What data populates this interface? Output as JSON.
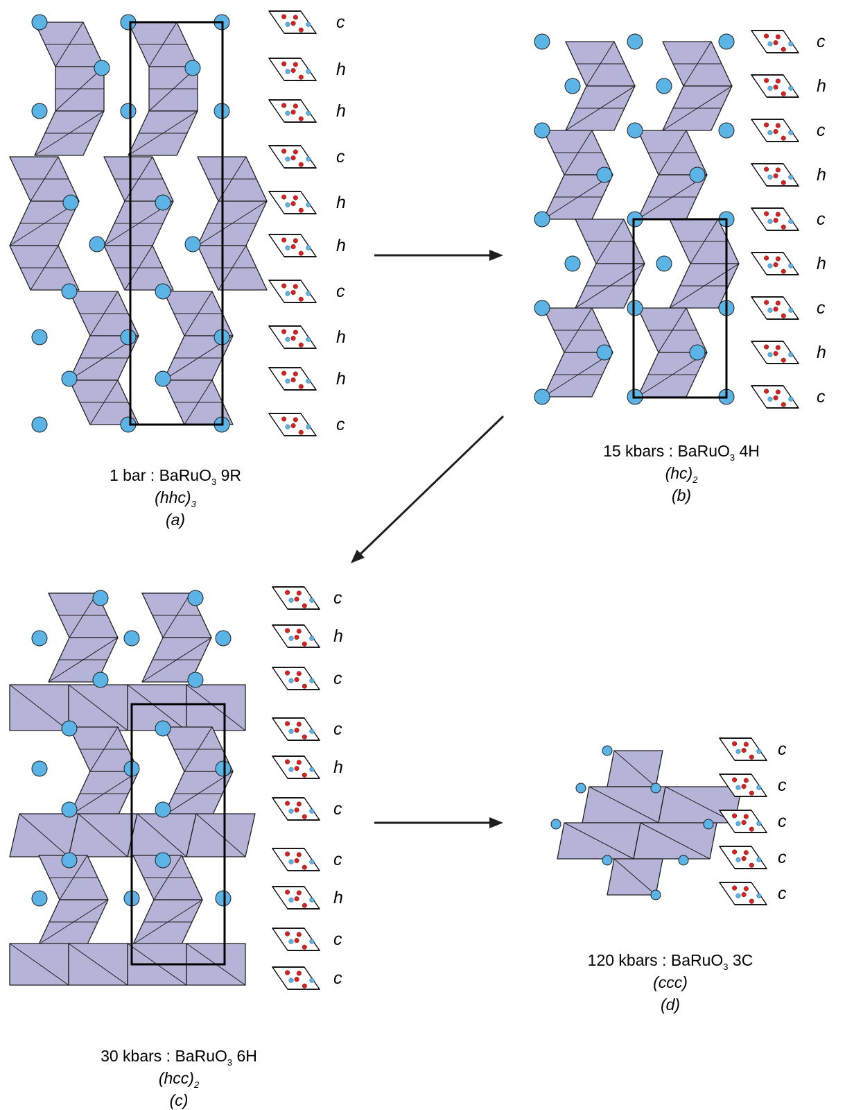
{
  "panels": [
    {
      "id": "a",
      "pressure": "1 bar",
      "formula": {
        "prefix": "BaRuO",
        "subscript": "3",
        "polytype": "9R"
      },
      "sequence": {
        "body": "(hhc)",
        "subscript": "3"
      },
      "panel_label": "(a)",
      "stacking": [
        "c",
        "h",
        "h",
        "c",
        "h",
        "h",
        "c",
        "h",
        "h",
        "c"
      ]
    },
    {
      "id": "b",
      "pressure": "15 kbars",
      "formula": {
        "prefix": "BaRuO",
        "subscript": "3",
        "polytype": "4H"
      },
      "sequence": {
        "body": "(hc)",
        "subscript": "2"
      },
      "panel_label": "(b)",
      "stacking": [
        "c",
        "h",
        "c",
        "h",
        "c",
        "h",
        "c",
        "h",
        "c"
      ]
    },
    {
      "id": "c",
      "pressure": "30 kbars",
      "formula": {
        "prefix": "BaRuO",
        "subscript": "3",
        "polytype": "6H"
      },
      "sequence": {
        "body": "(hcc)",
        "subscript": "2"
      },
      "panel_label": "(c)",
      "stacking": [
        "c",
        "h",
        "c",
        "c",
        "h",
        "c",
        "c",
        "h",
        "c",
        "c"
      ]
    },
    {
      "id": "d",
      "pressure": "120 kbars",
      "formula": {
        "prefix": "BaRuO",
        "subscript": "3",
        "polytype": "3C"
      },
      "sequence": {
        "body": "(ccc)",
        "subscript": ""
      },
      "panel_label": "(d)",
      "stacking": [
        "c",
        "c",
        "c",
        "c",
        "c"
      ]
    }
  ],
  "arrows": [
    {
      "from": "a",
      "to": "b"
    },
    {
      "from": "b",
      "to": "c"
    },
    {
      "from": "c",
      "to": "d"
    }
  ],
  "colors": {
    "octahedron_fill": "#b5b3d7",
    "ba_atom": "#5bb3e6",
    "o_atom_red": "#d82222",
    "outline": "#1e1e1e"
  }
}
